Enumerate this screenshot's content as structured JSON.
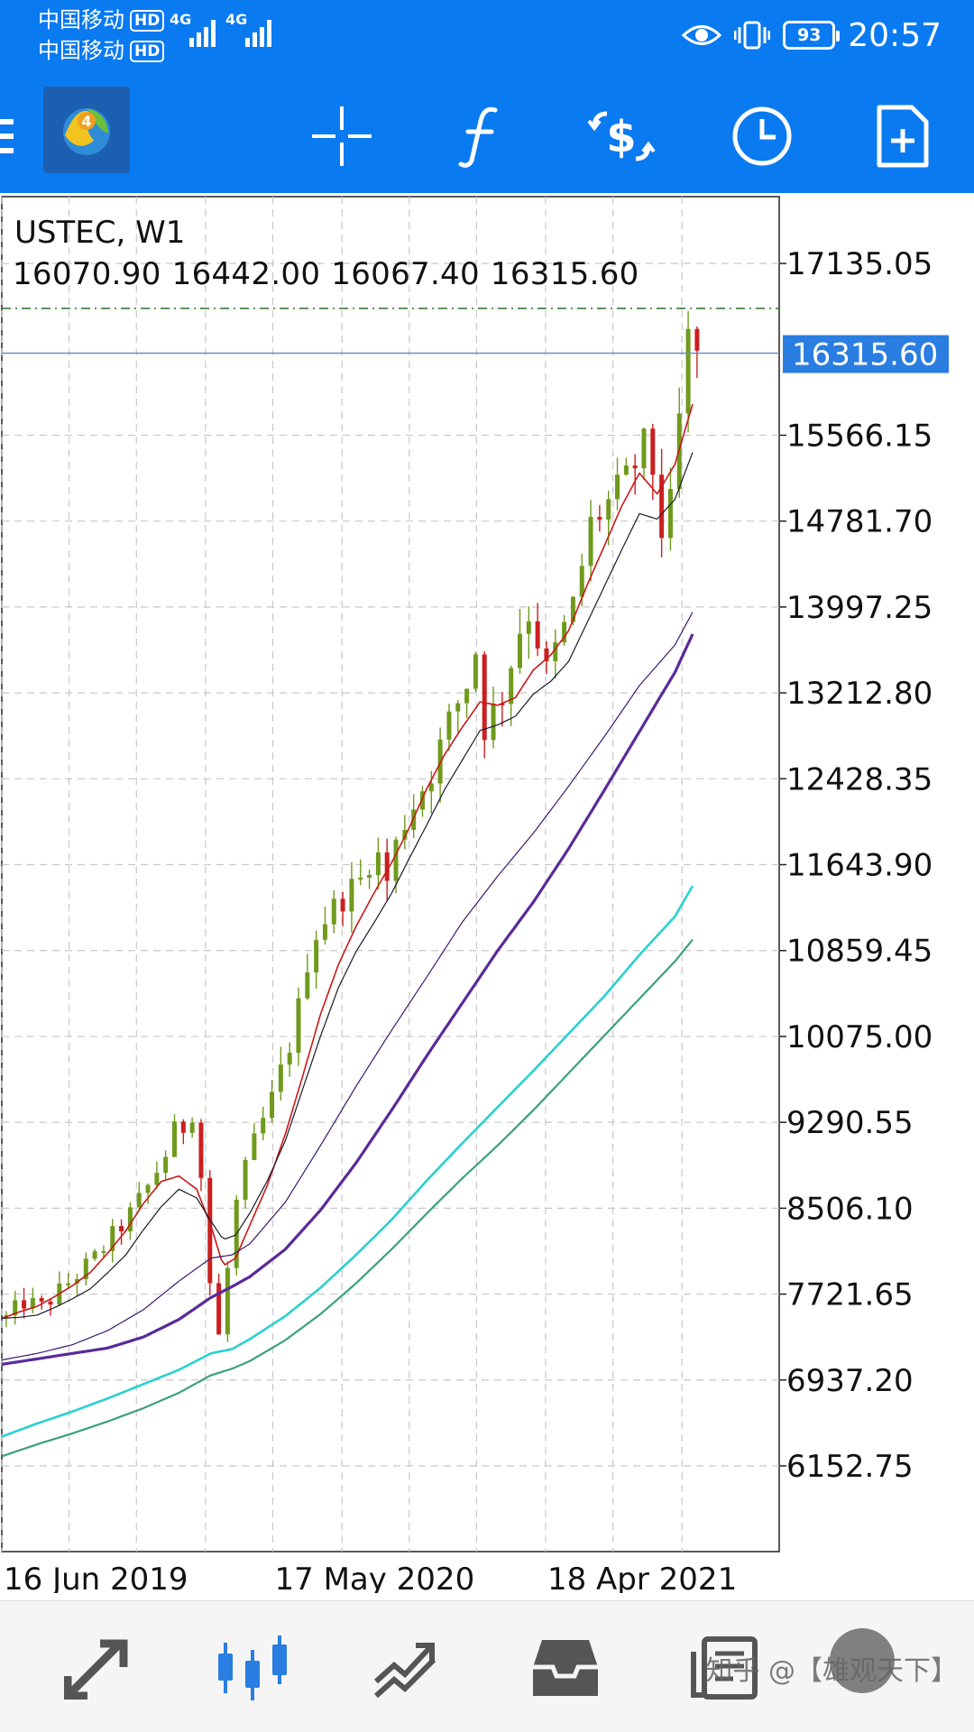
{
  "status_bar": {
    "carrier1": "中国移动",
    "carrier2": "中国移动",
    "hd_badge": "HD",
    "network1": "4G",
    "network2": "4G",
    "battery": "93",
    "time": "20:57"
  },
  "toolbar": {
    "icons": [
      "menu-icon",
      "metatrader-logo",
      "crosshair-icon",
      "indicators-icon",
      "timeframe-symbol-icon",
      "clock-icon",
      "new-order-icon"
    ]
  },
  "chart_header": {
    "symbol_tf": "USTEC, W1",
    "open": "16070.90",
    "high": "16442.00",
    "low": "16067.40",
    "close": "16315.60"
  },
  "chart_data": {
    "type": "candlestick",
    "symbol": "USTEC",
    "timeframe": "W1",
    "y_ticks": [
      "17135.05",
      "15566.15",
      "14781.70",
      "13997.25",
      "13212.80",
      "12428.35",
      "11643.90",
      "10859.45",
      "10075.00",
      "9290.55",
      "8506.10",
      "7721.65",
      "6937.20",
      "6152.75"
    ],
    "ylim": [
      5370,
      17745
    ],
    "current_price": "16315.60",
    "current_price_value": 16315.6,
    "high_line_value": 16725,
    "x_ticks": [
      "16 Jun 2019",
      "17 May 2020",
      "18 Apr 2021"
    ],
    "grid": true,
    "colors": {
      "bull": "#6f9a1c",
      "bear": "#cc1f1f",
      "ma_red": "#c81818",
      "ma_black": "#1a1a2a",
      "ma_purple_thin": "#3a1a6e",
      "ma_purple_thick": "#5a2a9a",
      "ma_cyan": "#2ad0d0",
      "ma_green": "#3aa080",
      "price_label": "#2a7de1"
    },
    "ma_series": [
      {
        "name": "",
        "color": "#c81818",
        "width": 1.6,
        "values": [
          [
            0,
            7500
          ],
          [
            10,
            7560
          ],
          [
            20,
            7610
          ],
          [
            30,
            7700
          ],
          [
            40,
            7800
          ],
          [
            50,
            7920
          ],
          [
            60,
            8100
          ],
          [
            70,
            8300
          ],
          [
            80,
            8550
          ],
          [
            90,
            8750
          ],
          [
            100,
            8800
          ],
          [
            110,
            8680
          ],
          [
            118,
            8350
          ],
          [
            125,
            7980
          ],
          [
            132,
            8050
          ],
          [
            140,
            8350
          ],
          [
            150,
            8720
          ],
          [
            160,
            9180
          ],
          [
            170,
            9720
          ],
          [
            180,
            10280
          ],
          [
            190,
            10730
          ],
          [
            200,
            11080
          ],
          [
            210,
            11380
          ],
          [
            220,
            11660
          ],
          [
            230,
            11980
          ],
          [
            240,
            12340
          ],
          [
            250,
            12650
          ],
          [
            260,
            12900
          ],
          [
            270,
            13130
          ],
          [
            280,
            13100
          ],
          [
            290,
            13170
          ],
          [
            300,
            13420
          ],
          [
            310,
            13560
          ],
          [
            320,
            13780
          ],
          [
            330,
            14180
          ],
          [
            340,
            14550
          ],
          [
            350,
            14920
          ],
          [
            360,
            15220
          ],
          [
            370,
            15030
          ],
          [
            380,
            15300
          ],
          [
            390,
            15850
          ]
        ]
      },
      {
        "name": "",
        "color": "#1a1a2a",
        "width": 1.2,
        "values": [
          [
            0,
            7500
          ],
          [
            10,
            7510
          ],
          [
            20,
            7530
          ],
          [
            30,
            7600
          ],
          [
            40,
            7680
          ],
          [
            50,
            7770
          ],
          [
            60,
            7920
          ],
          [
            70,
            8080
          ],
          [
            80,
            8310
          ],
          [
            90,
            8520
          ],
          [
            100,
            8680
          ],
          [
            110,
            8600
          ],
          [
            118,
            8390
          ],
          [
            125,
            8220
          ],
          [
            132,
            8260
          ],
          [
            140,
            8460
          ],
          [
            150,
            8760
          ],
          [
            160,
            9120
          ],
          [
            170,
            9600
          ],
          [
            180,
            10080
          ],
          [
            190,
            10520
          ],
          [
            200,
            10850
          ],
          [
            210,
            11110
          ],
          [
            220,
            11380
          ],
          [
            230,
            11700
          ],
          [
            240,
            12010
          ],
          [
            250,
            12330
          ],
          [
            260,
            12600
          ],
          [
            270,
            12870
          ],
          [
            280,
            12920
          ],
          [
            290,
            13000
          ],
          [
            300,
            13200
          ],
          [
            310,
            13320
          ],
          [
            320,
            13500
          ],
          [
            330,
            13840
          ],
          [
            340,
            14180
          ],
          [
            350,
            14520
          ],
          [
            360,
            14850
          ],
          [
            370,
            14800
          ],
          [
            380,
            14980
          ],
          [
            390,
            15410
          ]
        ]
      },
      {
        "name": "",
        "color": "#3a1a6e",
        "width": 1.2,
        "values": [
          [
            0,
            7120
          ],
          [
            20,
            7180
          ],
          [
            40,
            7260
          ],
          [
            60,
            7390
          ],
          [
            80,
            7580
          ],
          [
            100,
            7840
          ],
          [
            118,
            8050
          ],
          [
            130,
            8080
          ],
          [
            140,
            8180
          ],
          [
            160,
            8560
          ],
          [
            180,
            9080
          ],
          [
            200,
            9620
          ],
          [
            220,
            10130
          ],
          [
            240,
            10620
          ],
          [
            260,
            11120
          ],
          [
            280,
            11540
          ],
          [
            300,
            11930
          ],
          [
            320,
            12360
          ],
          [
            340,
            12810
          ],
          [
            360,
            13280
          ],
          [
            380,
            13650
          ],
          [
            390,
            13950
          ]
        ]
      },
      {
        "name": "",
        "color": "#5a2a9a",
        "width": 3.2,
        "values": [
          [
            0,
            7080
          ],
          [
            20,
            7130
          ],
          [
            40,
            7180
          ],
          [
            60,
            7230
          ],
          [
            80,
            7330
          ],
          [
            100,
            7490
          ],
          [
            118,
            7690
          ],
          [
            130,
            7790
          ],
          [
            140,
            7880
          ],
          [
            160,
            8130
          ],
          [
            180,
            8490
          ],
          [
            200,
            8920
          ],
          [
            220,
            9400
          ],
          [
            240,
            9900
          ],
          [
            260,
            10380
          ],
          [
            280,
            10860
          ],
          [
            300,
            11300
          ],
          [
            320,
            11790
          ],
          [
            340,
            12320
          ],
          [
            360,
            12860
          ],
          [
            380,
            13400
          ],
          [
            390,
            13750
          ]
        ]
      },
      {
        "name": "",
        "color": "#2ad0d0",
        "width": 2.6,
        "values": [
          [
            0,
            6420
          ],
          [
            20,
            6540
          ],
          [
            40,
            6650
          ],
          [
            60,
            6770
          ],
          [
            80,
            6900
          ],
          [
            100,
            7030
          ],
          [
            118,
            7180
          ],
          [
            130,
            7220
          ],
          [
            140,
            7310
          ],
          [
            160,
            7520
          ],
          [
            180,
            7780
          ],
          [
            200,
            8080
          ],
          [
            220,
            8400
          ],
          [
            240,
            8760
          ],
          [
            260,
            9100
          ],
          [
            280,
            9430
          ],
          [
            300,
            9760
          ],
          [
            320,
            10100
          ],
          [
            340,
            10440
          ],
          [
            360,
            10820
          ],
          [
            380,
            11170
          ],
          [
            390,
            11450
          ]
        ]
      },
      {
        "name": "",
        "color": "#3aa080",
        "width": 2.2,
        "values": [
          [
            0,
            6240
          ],
          [
            20,
            6350
          ],
          [
            40,
            6450
          ],
          [
            60,
            6560
          ],
          [
            80,
            6680
          ],
          [
            100,
            6820
          ],
          [
            118,
            6980
          ],
          [
            130,
            7040
          ],
          [
            140,
            7110
          ],
          [
            160,
            7300
          ],
          [
            180,
            7540
          ],
          [
            200,
            7820
          ],
          [
            220,
            8130
          ],
          [
            240,
            8460
          ],
          [
            260,
            8780
          ],
          [
            280,
            9080
          ],
          [
            300,
            9400
          ],
          [
            320,
            9740
          ],
          [
            340,
            10080
          ],
          [
            360,
            10420
          ],
          [
            380,
            10760
          ],
          [
            390,
            10960
          ]
        ]
      }
    ],
    "candle_anchors": [
      [
        0,
        7500
      ],
      [
        10,
        7650
      ],
      [
        20,
        7600
      ],
      [
        30,
        7750
      ],
      [
        40,
        7900
      ],
      [
        50,
        8050
      ],
      [
        60,
        8250
      ],
      [
        70,
        8450
      ],
      [
        80,
        8700
      ],
      [
        90,
        9000
      ],
      [
        95,
        9200
      ],
      [
        100,
        9250
      ],
      [
        105,
        9400
      ],
      [
        108,
        9100
      ],
      [
        112,
        8500
      ],
      [
        116,
        7600
      ],
      [
        118,
        7000
      ],
      [
        121,
        7500
      ],
      [
        124,
        7800
      ],
      [
        128,
        8400
      ],
      [
        132,
        8700
      ],
      [
        140,
        9100
      ],
      [
        150,
        9500
      ],
      [
        160,
        10000
      ],
      [
        166,
        10400
      ],
      [
        172,
        10950
      ],
      [
        180,
        11150
      ],
      [
        190,
        11350
      ],
      [
        200,
        11500
      ],
      [
        208,
        11800
      ],
      [
        215,
        11500
      ],
      [
        222,
        11950
      ],
      [
        230,
        12200
      ],
      [
        240,
        12500
      ],
      [
        250,
        12950
      ],
      [
        260,
        13300
      ],
      [
        265,
        13600
      ],
      [
        270,
        12900
      ],
      [
        280,
        13200
      ],
      [
        290,
        13800
      ],
      [
        295,
        13950
      ],
      [
        300,
        13700
      ],
      [
        305,
        13400
      ],
      [
        310,
        13600
      ],
      [
        320,
        14000
      ],
      [
        330,
        14750
      ],
      [
        340,
        14950
      ],
      [
        350,
        15150
      ],
      [
        360,
        15450
      ],
      [
        365,
        15250
      ],
      [
        370,
        14700
      ],
      [
        375,
        14900
      ],
      [
        380,
        15700
      ],
      [
        384,
        16450
      ],
      [
        388,
        16350
      ],
      [
        390,
        16315
      ]
    ]
  },
  "bottom_nav": {
    "icons": [
      "trade-icon",
      "chart-icon",
      "history-icon",
      "inbox-icon",
      "news-icon"
    ],
    "watermark": "知乎 @【雄观天下】"
  }
}
